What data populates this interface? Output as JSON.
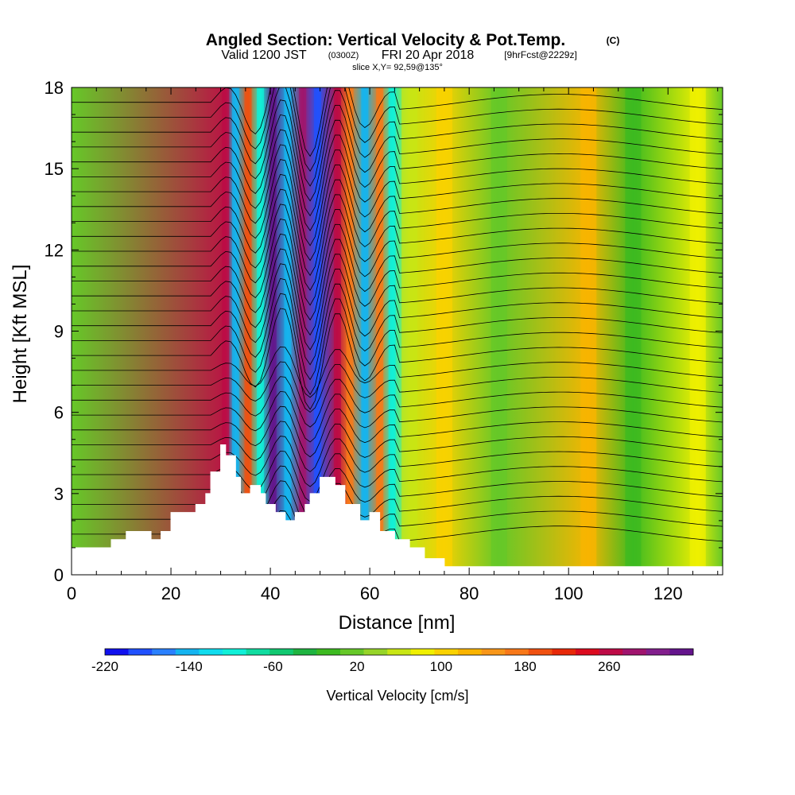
{
  "header": {
    "title": "Angled Section: Vertical Velocity & Pot.Temp.",
    "title_unit": "(C)",
    "valid_prefix": "Valid 1200 JST",
    "valid_z": "(0300Z)",
    "valid_date": "FRI 20 Apr 2018",
    "forecast": "[9hrFcst@2229z]",
    "slice": "slice X,Y= 92,59@135°"
  },
  "chart_data": {
    "type": "heatmap",
    "xlabel": "Distance [nm]",
    "ylabel": "Height [Kft MSL]",
    "xlim": [
      0,
      131
    ],
    "ylim": [
      0,
      18
    ],
    "x_ticks": [
      0,
      20,
      40,
      60,
      80,
      100,
      120
    ],
    "y_ticks": [
      0,
      3,
      6,
      9,
      12,
      15,
      18
    ],
    "colorbar": {
      "label": "Vertical Velocity [cm/s]",
      "range": [
        -220,
        340
      ],
      "step": 20,
      "tick_labels": [
        "-220",
        "-140",
        "-60",
        "20",
        "100",
        "180",
        "260"
      ],
      "colors": [
        "#1010ee",
        "#2050ff",
        "#2a80ff",
        "#14b4f0",
        "#10dcee",
        "#10f0d8",
        "#10dca0",
        "#10c870",
        "#1eb440",
        "#3cba20",
        "#66c828",
        "#96d428",
        "#c8e614",
        "#f0f000",
        "#fad200",
        "#fab400",
        "#f89618",
        "#f87818",
        "#f05010",
        "#e82808",
        "#dc0a1e",
        "#be0a46",
        "#a0146e",
        "#821e8c",
        "#64148c"
      ],
      "orientation": "horizontal"
    },
    "terrain_profile": {
      "x_nm": [
        0,
        6,
        8,
        11,
        16,
        18,
        20,
        22,
        25,
        27,
        28,
        30,
        31,
        33,
        34,
        36,
        38,
        39,
        41,
        43,
        45,
        47,
        48,
        50,
        53,
        55,
        58,
        60,
        62,
        65,
        68,
        71,
        75,
        131
      ],
      "height_kft": [
        1.0,
        1.0,
        1.3,
        1.6,
        1.3,
        1.6,
        2.3,
        2.3,
        2.6,
        3.0,
        3.8,
        4.8,
        4.4,
        3.6,
        3.0,
        3.3,
        3.0,
        2.6,
        2.3,
        2.0,
        2.3,
        2.6,
        3.0,
        3.6,
        3.3,
        2.6,
        2.0,
        2.3,
        1.6,
        1.3,
        1.0,
        0.6,
        0.3,
        0.3
      ]
    },
    "vertical_velocity_bands": [
      {
        "x_nm": 31,
        "cm_s": 200
      },
      {
        "x_nm": 33,
        "cm_s": -150
      },
      {
        "x_nm": 35.5,
        "cm_s": 150
      },
      {
        "x_nm": 38,
        "cm_s": -120
      },
      {
        "x_nm": 40.5,
        "cm_s": 280
      },
      {
        "x_nm": 43.5,
        "cm_s": -160
      },
      {
        "x_nm": 46.5,
        "cm_s": 220
      },
      {
        "x_nm": 49.5,
        "cm_s": -200
      },
      {
        "x_nm": 53.5,
        "cm_s": 210
      },
      {
        "x_nm": 56,
        "cm_s": 120
      },
      {
        "x_nm": 59,
        "cm_s": -160
      },
      {
        "x_nm": 62,
        "cm_s": 130
      },
      {
        "x_nm": 64.5,
        "cm_s": -110
      },
      {
        "x_nm": 68,
        "cm_s": 20
      },
      {
        "x_nm": 75,
        "cm_s": 70
      },
      {
        "x_nm": 86,
        "cm_s": -20
      },
      {
        "x_nm": 104,
        "cm_s": 80
      },
      {
        "x_nm": 113,
        "cm_s": -40
      },
      {
        "x_nm": 126,
        "cm_s": 50
      }
    ]
  }
}
